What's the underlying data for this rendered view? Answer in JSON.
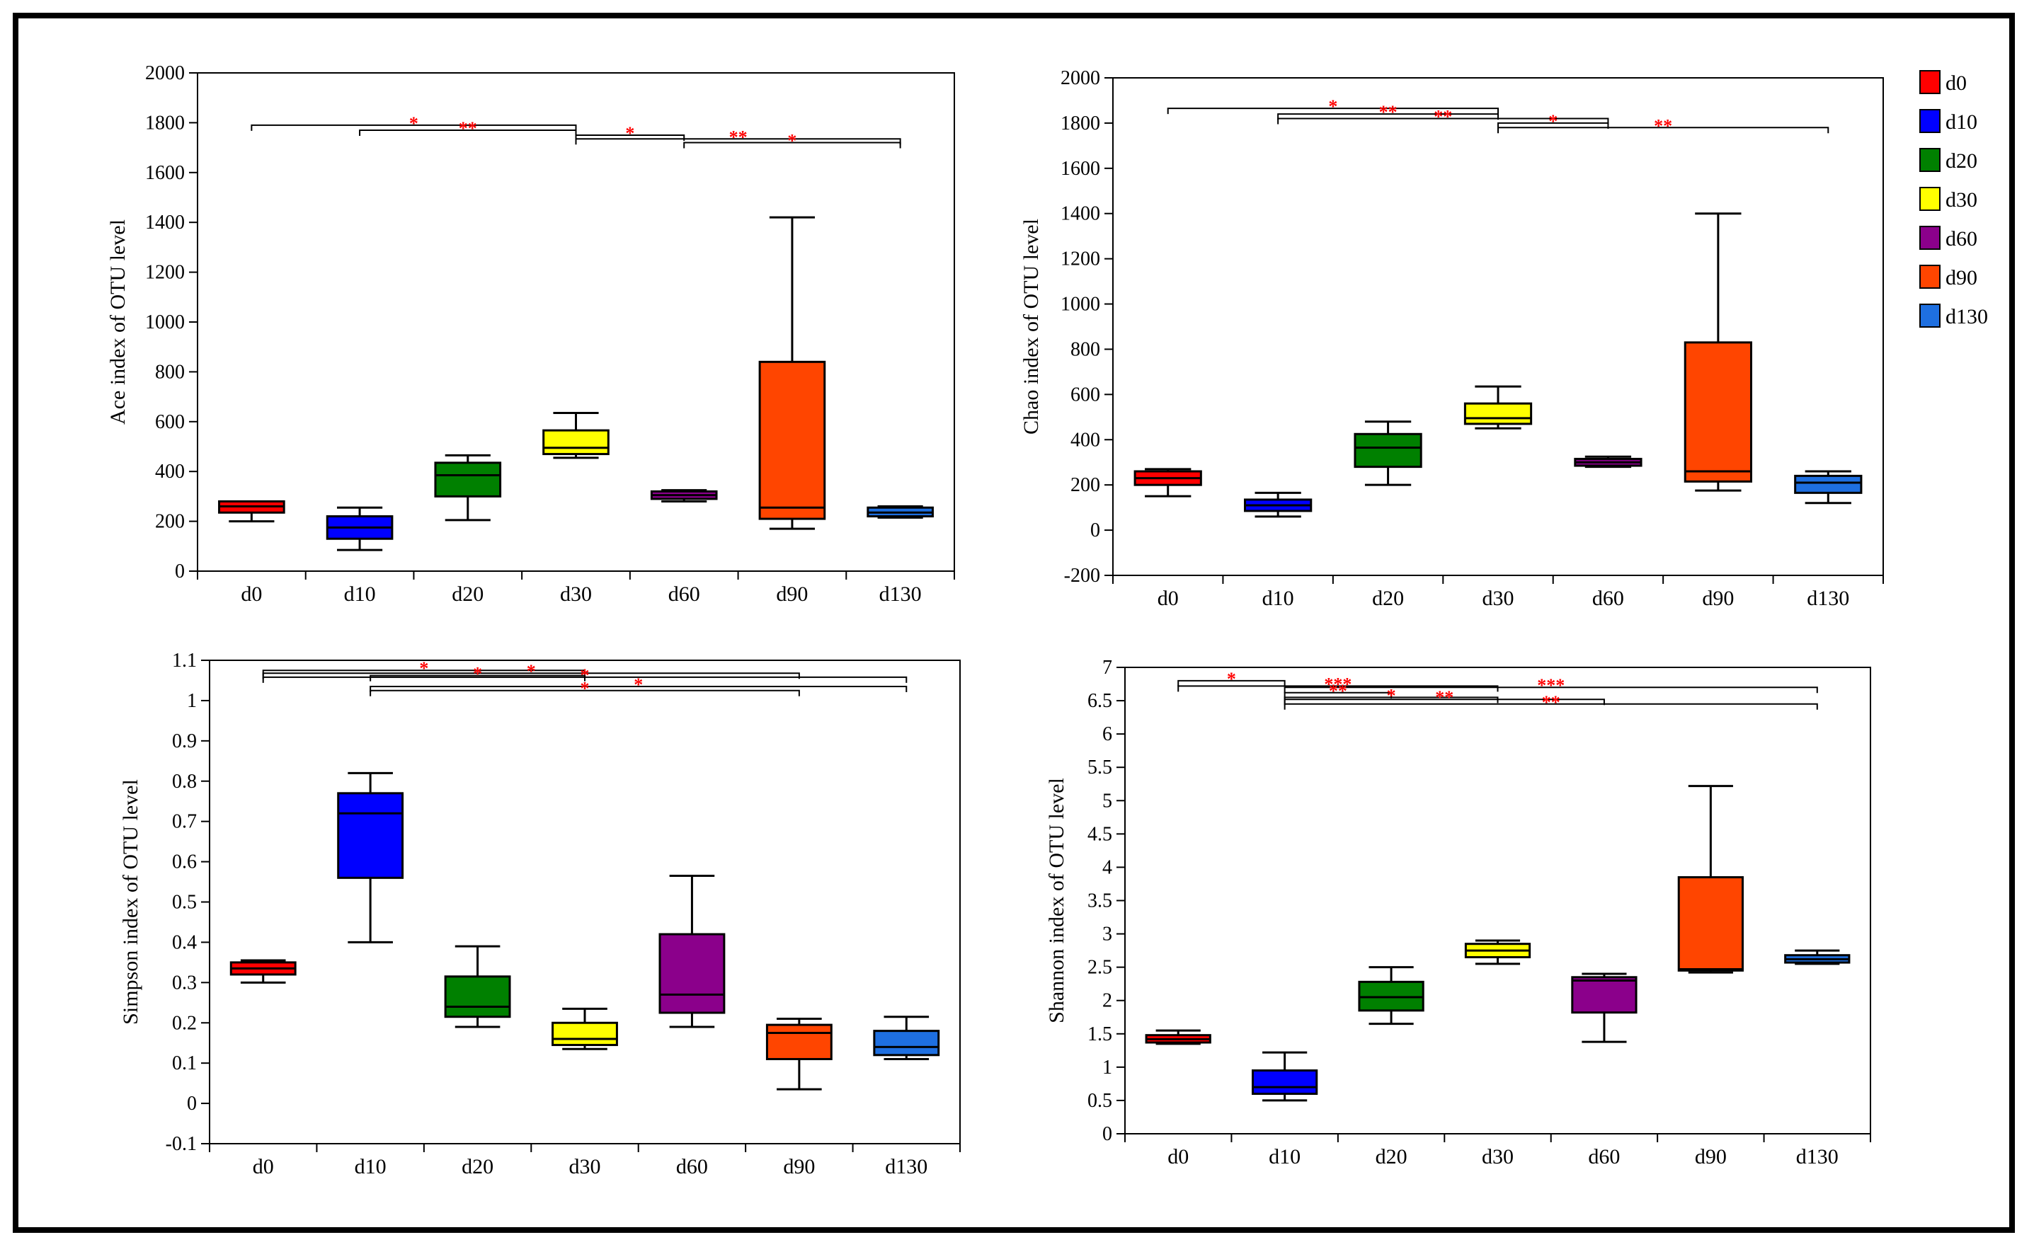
{
  "colors": {
    "d0": "#ff0000",
    "d10": "#0000ff",
    "d20": "#008000",
    "d30": "#ffff00",
    "d60": "#8b008b",
    "d90": "#ff4500",
    "d130": "#1e6fe0",
    "sig": "#ff0000"
  },
  "legend": {
    "position": "top-right",
    "entries": [
      {
        "label": "d0",
        "color": "#ff0000"
      },
      {
        "label": "d10",
        "color": "#0000ff"
      },
      {
        "label": "d20",
        "color": "#008000"
      },
      {
        "label": "d30",
        "color": "#ffff00"
      },
      {
        "label": "d60",
        "color": "#8b008b"
      },
      {
        "label": "d90",
        "color": "#ff4500"
      },
      {
        "label": "d130",
        "color": "#1e6fe0"
      }
    ]
  },
  "chart_data": [
    {
      "type": "box",
      "ylabel": "Ace index of OTU level",
      "ylim": [
        0,
        2000
      ],
      "yticks": [
        0,
        200,
        400,
        600,
        800,
        1000,
        1200,
        1400,
        1600,
        1800,
        2000
      ],
      "categories": [
        "d0",
        "d10",
        "d20",
        "d30",
        "d60",
        "d90",
        "d130"
      ],
      "boxes": [
        {
          "min": 200,
          "q1": 235,
          "median": 260,
          "q3": 280,
          "max": 280
        },
        {
          "min": 85,
          "q1": 130,
          "median": 175,
          "q3": 220,
          "max": 255
        },
        {
          "min": 205,
          "q1": 300,
          "median": 385,
          "q3": 435,
          "max": 465
        },
        {
          "min": 455,
          "q1": 470,
          "median": 495,
          "q3": 565,
          "max": 635
        },
        {
          "min": 280,
          "q1": 290,
          "median": 305,
          "q3": 320,
          "max": 325
        },
        {
          "min": 170,
          "q1": 210,
          "median": 255,
          "q3": 840,
          "max": 1420
        },
        {
          "min": 215,
          "q1": 220,
          "median": 235,
          "q3": 255,
          "max": 260
        }
      ],
      "comparisons": [
        {
          "from": 0,
          "to": 3,
          "y": 1790,
          "label": "*"
        },
        {
          "from": 1,
          "to": 3,
          "y": 1770,
          "label": "**"
        },
        {
          "from": 3,
          "to": 4,
          "y": 1750,
          "label": "*"
        },
        {
          "from": 3,
          "to": 6,
          "y": 1735,
          "label": "**"
        },
        {
          "from": 4,
          "to": 6,
          "y": 1720,
          "label": "*"
        }
      ]
    },
    {
      "type": "box",
      "ylabel": "Chao index of OTU level",
      "ylim": [
        -200,
        2000
      ],
      "yticks": [
        -200,
        0,
        200,
        400,
        600,
        800,
        1000,
        1200,
        1400,
        1600,
        1800,
        2000
      ],
      "categories": [
        "d0",
        "d10",
        "d20",
        "d30",
        "d60",
        "d90",
        "d130"
      ],
      "boxes": [
        {
          "min": 150,
          "q1": 200,
          "median": 230,
          "q3": 260,
          "max": 270
        },
        {
          "min": 60,
          "q1": 85,
          "median": 110,
          "q3": 135,
          "max": 165
        },
        {
          "min": 200,
          "q1": 280,
          "median": 365,
          "q3": 425,
          "max": 480
        },
        {
          "min": 450,
          "q1": 470,
          "median": 495,
          "q3": 560,
          "max": 635
        },
        {
          "min": 280,
          "q1": 285,
          "median": 300,
          "q3": 315,
          "max": 325
        },
        {
          "min": 175,
          "q1": 215,
          "median": 260,
          "q3": 830,
          "max": 1400
        },
        {
          "min": 120,
          "q1": 165,
          "median": 210,
          "q3": 240,
          "max": 260
        }
      ],
      "comparisons": [
        {
          "from": 0,
          "to": 3,
          "y": 1865,
          "label": "*"
        },
        {
          "from": 1,
          "to": 3,
          "y": 1840,
          "label": "**"
        },
        {
          "from": 1,
          "to": 4,
          "y": 1820,
          "label": "**"
        },
        {
          "from": 3,
          "to": 4,
          "y": 1800,
          "label": "*"
        },
        {
          "from": 3,
          "to": 6,
          "y": 1780,
          "label": "**"
        }
      ]
    },
    {
      "type": "box",
      "ylabel": "Simpson index of OTU level",
      "ylim": [
        -0.1,
        1.1
      ],
      "yticks": [
        -0.1,
        0,
        0.1,
        0.2,
        0.3,
        0.4,
        0.5,
        0.6,
        0.7,
        0.8,
        0.9,
        1,
        1.1
      ],
      "categories": [
        "d0",
        "d10",
        "d20",
        "d30",
        "d60",
        "d90",
        "d130"
      ],
      "boxes": [
        {
          "min": 0.3,
          "q1": 0.32,
          "median": 0.335,
          "q3": 0.35,
          "max": 0.355
        },
        {
          "min": 0.4,
          "q1": 0.56,
          "median": 0.72,
          "q3": 0.77,
          "max": 0.82
        },
        {
          "min": 0.19,
          "q1": 0.215,
          "median": 0.24,
          "q3": 0.315,
          "max": 0.39
        },
        {
          "min": 0.135,
          "q1": 0.145,
          "median": 0.16,
          "q3": 0.2,
          "max": 0.235
        },
        {
          "min": 0.19,
          "q1": 0.225,
          "median": 0.27,
          "q3": 0.42,
          "max": 0.565
        },
        {
          "min": 0.035,
          "q1": 0.11,
          "median": 0.175,
          "q3": 0.195,
          "max": 0.21
        },
        {
          "min": 0.11,
          "q1": 0.12,
          "median": 0.14,
          "q3": 0.18,
          "max": 0.215
        }
      ],
      "comparisons": [
        {
          "from": 0,
          "to": 3,
          "y": 1.075,
          "label": "*"
        },
        {
          "from": 0,
          "to": 5,
          "y": 1.068,
          "label": "*"
        },
        {
          "from": 0,
          "to": 6,
          "y": 1.058,
          "label": "*"
        },
        {
          "from": 1,
          "to": 3,
          "y": 1.062,
          "label": "*"
        },
        {
          "from": 1,
          "to": 6,
          "y": 1.035,
          "label": "*"
        },
        {
          "from": 1,
          "to": 5,
          "y": 1.025,
          "label": "*"
        }
      ]
    },
    {
      "type": "box",
      "ylabel": "Shannon index of OTU level",
      "ylim": [
        0,
        7
      ],
      "yticks": [
        0,
        0.5,
        1,
        1.5,
        2,
        2.5,
        3,
        3.5,
        4,
        4.5,
        5,
        5.5,
        6,
        6.5,
        7
      ],
      "categories": [
        "d0",
        "d10",
        "d20",
        "d30",
        "d60",
        "d90",
        "d130"
      ],
      "boxes": [
        {
          "min": 1.35,
          "q1": 1.37,
          "median": 1.42,
          "q3": 1.48,
          "max": 1.55
        },
        {
          "min": 0.5,
          "q1": 0.6,
          "median": 0.7,
          "q3": 0.95,
          "max": 1.22
        },
        {
          "min": 1.65,
          "q1": 1.85,
          "median": 2.05,
          "q3": 2.28,
          "max": 2.5
        },
        {
          "min": 2.55,
          "q1": 2.65,
          "median": 2.75,
          "q3": 2.85,
          "max": 2.9
        },
        {
          "min": 1.38,
          "q1": 1.82,
          "median": 2.3,
          "q3": 2.35,
          "max": 2.4
        },
        {
          "min": 2.42,
          "q1": 2.45,
          "median": 2.47,
          "q3": 3.85,
          "max": 5.22
        },
        {
          "min": 2.55,
          "q1": 2.57,
          "median": 2.62,
          "q3": 2.68,
          "max": 2.75
        }
      ],
      "comparisons": [
        {
          "from": 0,
          "to": 1,
          "y": 6.8,
          "label": "*"
        },
        {
          "from": 0,
          "to": 3,
          "y": 6.72,
          "label": "***"
        },
        {
          "from": 1,
          "to": 6,
          "y": 6.7,
          "label": "***"
        },
        {
          "from": 1,
          "to": 2,
          "y": 6.62,
          "label": "**"
        },
        {
          "from": 1,
          "to": 3,
          "y": 6.55,
          "label": "*"
        },
        {
          "from": 1,
          "to": 4,
          "y": 6.52,
          "label": "**"
        },
        {
          "from": 1,
          "to": 6,
          "y": 6.45,
          "label": "**"
        }
      ]
    }
  ]
}
